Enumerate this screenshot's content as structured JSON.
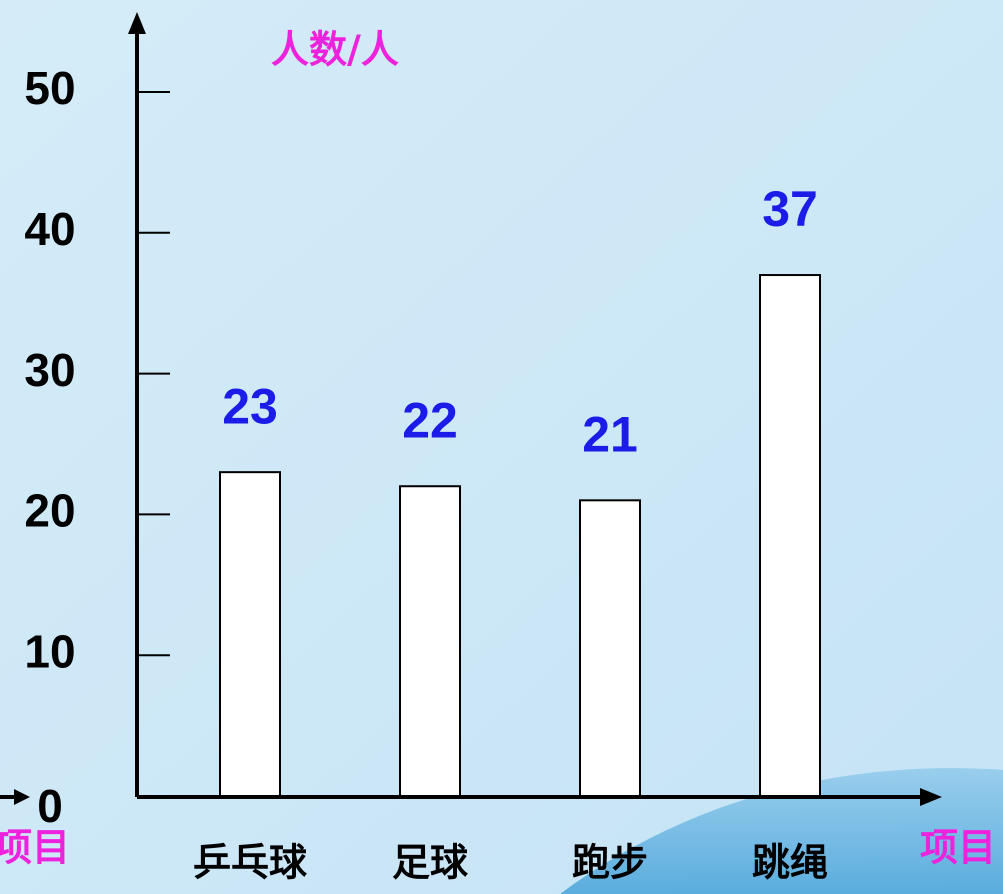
{
  "chart_data": {
    "type": "bar",
    "y_label": "人数/人",
    "x_label": "项目",
    "categories": [
      "乒乓球",
      "足球",
      "跑步",
      "跳绳"
    ],
    "values": [
      23,
      22,
      21,
      37
    ],
    "color": "#ffffff",
    "ylim": [
      0,
      50
    ],
    "yticks": [
      0,
      10,
      20,
      30,
      40,
      50
    ]
  }
}
